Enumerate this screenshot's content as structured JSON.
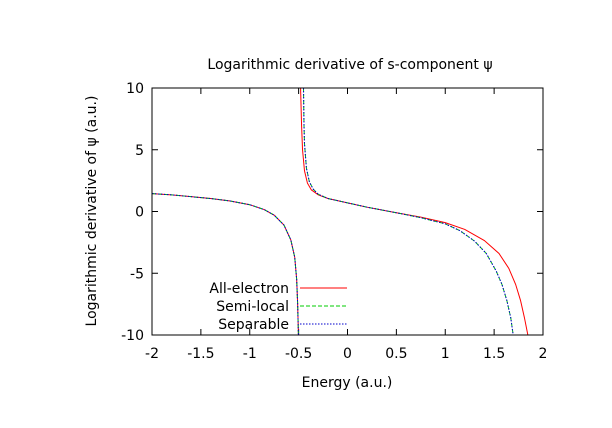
{
  "chart_data": {
    "type": "line",
    "title": "Logarithmic derivative of s-component ψ",
    "xlabel": "Energy (a.u.)",
    "ylabel": "Logarithmic derivative of ψ (a.u.)",
    "xlim": [
      -2,
      2
    ],
    "ylim": [
      -10,
      10
    ],
    "xticks": [
      -2,
      -1.5,
      -1,
      -0.5,
      0,
      0.5,
      1,
      1.5,
      2
    ],
    "yticks": [
      -10,
      -5,
      0,
      5,
      10
    ],
    "xtick_labels": [
      "-2",
      "-1.5",
      "-1",
      "-0.5",
      "0",
      "0.5",
      "1",
      "1.5",
      "2"
    ],
    "ytick_labels": [
      "-10",
      "-5",
      "0",
      "5",
      "10"
    ],
    "grid": false,
    "legend_position": "bottom-left",
    "series": [
      {
        "name": "All-electron",
        "color": "#ff0000",
        "dash": "solid",
        "segments": [
          [
            [
              -2.0,
              1.45
            ],
            [
              -1.8,
              1.35
            ],
            [
              -1.6,
              1.2
            ],
            [
              -1.4,
              1.05
            ],
            [
              -1.2,
              0.85
            ],
            [
              -1.0,
              0.55
            ],
            [
              -0.85,
              0.15
            ],
            [
              -0.75,
              -0.3
            ],
            [
              -0.65,
              -1.1
            ],
            [
              -0.58,
              -2.3
            ],
            [
              -0.54,
              -3.7
            ],
            [
              -0.52,
              -5.5
            ],
            [
              -0.51,
              -7.5
            ],
            [
              -0.502,
              -10.0
            ]
          ],
          [
            [
              -0.48,
              10.0
            ],
            [
              -0.47,
              7.0
            ],
            [
              -0.46,
              5.0
            ],
            [
              -0.44,
              3.3
            ],
            [
              -0.41,
              2.3
            ],
            [
              -0.37,
              1.75
            ],
            [
              -0.3,
              1.35
            ],
            [
              -0.2,
              1.05
            ],
            [
              0.0,
              0.7
            ],
            [
              0.2,
              0.35
            ],
            [
              0.5,
              -0.1
            ],
            [
              0.75,
              -0.45
            ],
            [
              1.0,
              -0.9
            ],
            [
              1.2,
              -1.45
            ],
            [
              1.4,
              -2.35
            ],
            [
              1.55,
              -3.4
            ],
            [
              1.65,
              -4.6
            ],
            [
              1.72,
              -5.9
            ],
            [
              1.77,
              -7.2
            ],
            [
              1.81,
              -8.6
            ],
            [
              1.845,
              -10.0
            ]
          ]
        ]
      },
      {
        "name": "Semi-local",
        "color": "#00cc00",
        "dash": "dashed",
        "segments": [
          [
            [
              -2.0,
              1.45
            ],
            [
              -1.8,
              1.35
            ],
            [
              -1.6,
              1.2
            ],
            [
              -1.4,
              1.05
            ],
            [
              -1.2,
              0.85
            ],
            [
              -1.0,
              0.55
            ],
            [
              -0.85,
              0.15
            ],
            [
              -0.75,
              -0.3
            ],
            [
              -0.65,
              -1.1
            ],
            [
              -0.58,
              -2.3
            ],
            [
              -0.54,
              -3.7
            ],
            [
              -0.52,
              -5.5
            ],
            [
              -0.51,
              -7.5
            ],
            [
              -0.502,
              -10.0
            ]
          ],
          [
            [
              -0.45,
              10.0
            ],
            [
              -0.445,
              7.0
            ],
            [
              -0.44,
              5.5
            ],
            [
              -0.42,
              3.5
            ],
            [
              -0.39,
              2.4
            ],
            [
              -0.35,
              1.8
            ],
            [
              -0.3,
              1.4
            ],
            [
              -0.2,
              1.05
            ],
            [
              0.0,
              0.7
            ],
            [
              0.2,
              0.35
            ],
            [
              0.5,
              -0.1
            ],
            [
              0.75,
              -0.5
            ],
            [
              1.0,
              -1.0
            ],
            [
              1.15,
              -1.55
            ],
            [
              1.3,
              -2.4
            ],
            [
              1.42,
              -3.4
            ],
            [
              1.52,
              -4.8
            ],
            [
              1.58,
              -5.9
            ],
            [
              1.63,
              -7.2
            ],
            [
              1.67,
              -8.6
            ],
            [
              1.695,
              -10.0
            ]
          ]
        ]
      },
      {
        "name": "Separable",
        "color": "#0000cc",
        "dash": "dotted",
        "segments": [
          [
            [
              -2.0,
              1.45
            ],
            [
              -1.8,
              1.35
            ],
            [
              -1.6,
              1.2
            ],
            [
              -1.4,
              1.05
            ],
            [
              -1.2,
              0.85
            ],
            [
              -1.0,
              0.55
            ],
            [
              -0.85,
              0.15
            ],
            [
              -0.75,
              -0.3
            ],
            [
              -0.65,
              -1.1
            ],
            [
              -0.58,
              -2.3
            ],
            [
              -0.54,
              -3.7
            ],
            [
              -0.52,
              -5.5
            ],
            [
              -0.51,
              -7.5
            ],
            [
              -0.502,
              -10.0
            ]
          ],
          [
            [
              -0.45,
              10.0
            ],
            [
              -0.445,
              7.0
            ],
            [
              -0.44,
              5.5
            ],
            [
              -0.42,
              3.5
            ],
            [
              -0.39,
              2.4
            ],
            [
              -0.35,
              1.8
            ],
            [
              -0.3,
              1.4
            ],
            [
              -0.2,
              1.05
            ],
            [
              0.0,
              0.7
            ],
            [
              0.2,
              0.35
            ],
            [
              0.5,
              -0.1
            ],
            [
              0.75,
              -0.5
            ],
            [
              1.0,
              -1.0
            ],
            [
              1.15,
              -1.55
            ],
            [
              1.3,
              -2.4
            ],
            [
              1.42,
              -3.4
            ],
            [
              1.52,
              -4.8
            ],
            [
              1.58,
              -5.9
            ],
            [
              1.63,
              -7.2
            ],
            [
              1.67,
              -8.6
            ],
            [
              1.695,
              -10.0
            ]
          ]
        ]
      }
    ]
  }
}
